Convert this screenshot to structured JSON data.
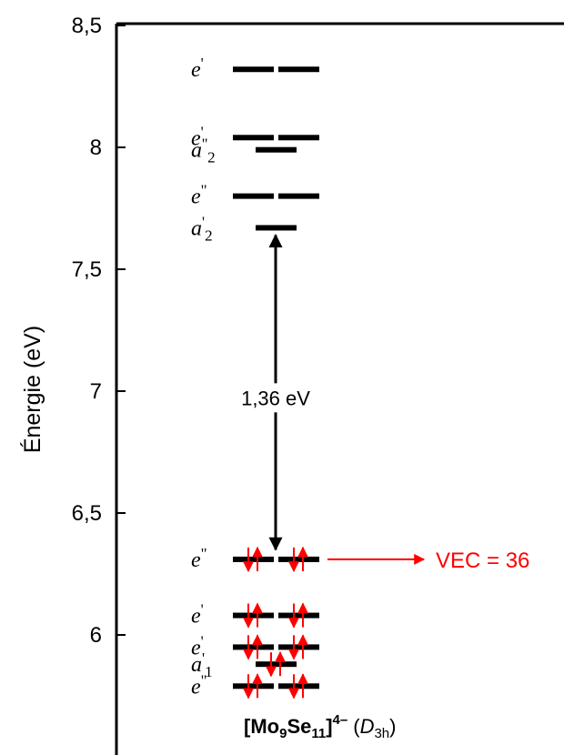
{
  "chart_data": {
    "type": "energy-level-diagram",
    "ylabel": "Énergie (eV)",
    "ylim": [
      5.6,
      8.5
    ],
    "yticks": [
      {
        "value": 6,
        "label": "6"
      },
      {
        "value": 6.5,
        "label": "6,5"
      },
      {
        "value": 7,
        "label": "7"
      },
      {
        "value": 7.5,
        "label": "7,5"
      },
      {
        "value": 8,
        "label": "8"
      },
      {
        "value": 8.5,
        "label": "8,5"
      }
    ],
    "levels": [
      {
        "symbol": "e",
        "prime": "'",
        "sub": "",
        "energy": 8.32,
        "degeneracy": 2,
        "electrons": 0
      },
      {
        "symbol": "e",
        "prime": "'",
        "sub": "",
        "energy": 8.04,
        "degeneracy": 2,
        "electrons": 0
      },
      {
        "symbol": "a",
        "prime": "''",
        "sub": "2",
        "energy": 7.99,
        "degeneracy": 1,
        "electrons": 0
      },
      {
        "symbol": "e",
        "prime": "\"",
        "sub": "",
        "energy": 7.8,
        "degeneracy": 2,
        "electrons": 0
      },
      {
        "symbol": "a",
        "prime": "'",
        "sub": "2",
        "energy": 7.67,
        "degeneracy": 1,
        "electrons": 0
      },
      {
        "symbol": "e",
        "prime": "\"",
        "sub": "",
        "energy": 6.31,
        "degeneracy": 2,
        "electrons": 4
      },
      {
        "symbol": "e",
        "prime": "'",
        "sub": "",
        "energy": 6.08,
        "degeneracy": 2,
        "electrons": 4
      },
      {
        "symbol": "e",
        "prime": "'",
        "sub": "",
        "energy": 5.95,
        "degeneracy": 2,
        "electrons": 4
      },
      {
        "symbol": "a",
        "prime": "'",
        "sub": "1",
        "energy": 5.88,
        "degeneracy": 1,
        "electrons": 2
      },
      {
        "symbol": "e",
        "prime": "\"",
        "sub": "",
        "energy": 5.79,
        "degeneracy": 2,
        "electrons": 4
      }
    ],
    "gap": {
      "label": "1,36 eV",
      "from": 6.35,
      "to": 7.64
    },
    "vec_label": "VEC = 36",
    "caption": {
      "open": "[Mo",
      "mo_count": "9",
      "se": "Se",
      "se_count": "11",
      "close": "]",
      "charge": "4–",
      "symmetry_paren_open": "(",
      "symmetry": "D",
      "symmetry_sub": "3h",
      "symmetry_paren_close": ")"
    },
    "colors": {
      "levels": "#000000",
      "electrons": "#ff0000",
      "vec": "#ff0000"
    }
  }
}
